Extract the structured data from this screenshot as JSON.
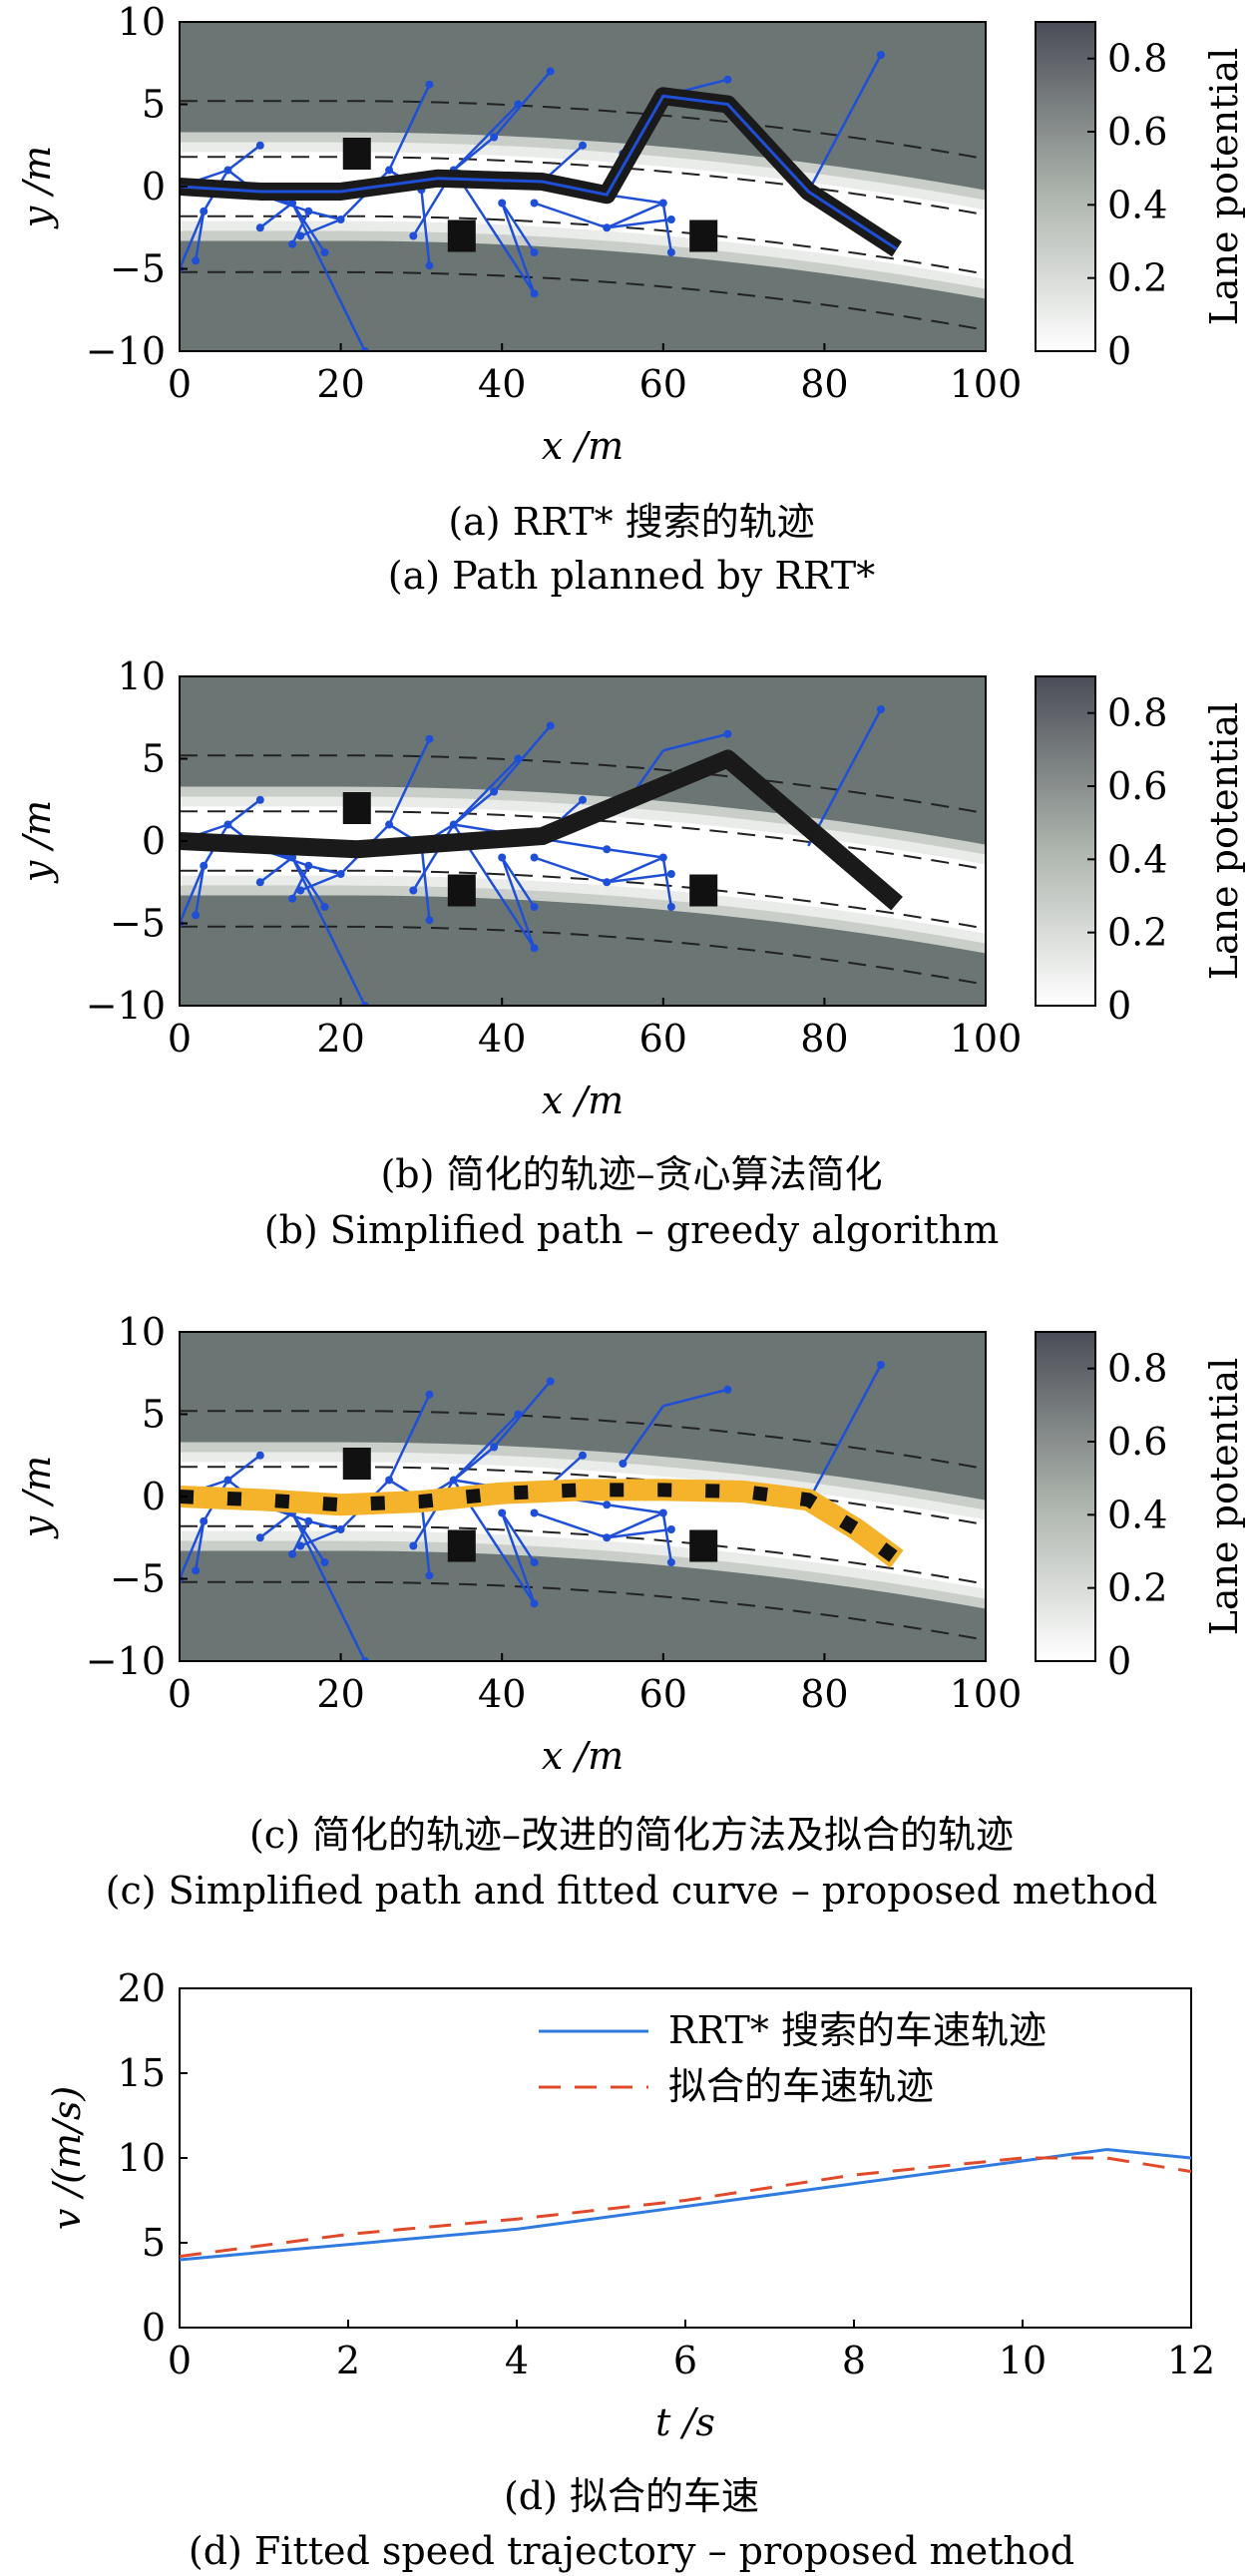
{
  "colors": {
    "road_edge": "#6b7574",
    "lane_center": "#ffffff",
    "tree_edges": "#1f4fd6",
    "rrt_path": "#1a1a1a",
    "fitted_curve": "#f4b32a",
    "speed_rrt": "#2f7be0",
    "speed_fit": "#e04a2a"
  },
  "colorbar": {
    "label": "Lane potential",
    "ticks": [
      "0",
      "0.2",
      "0.4",
      "0.6",
      "0.8"
    ]
  },
  "panel_axis": {
    "xlabel": "x /m",
    "ylabel": "y /m",
    "xticks": [
      "0",
      "20",
      "40",
      "60",
      "80",
      "100"
    ],
    "yticks": [
      "10",
      "5",
      "0",
      "−5",
      "−10"
    ]
  },
  "captions": {
    "a_cn": "(a) RRT* 搜索的轨迹",
    "a_en": "(a) Path planned by RRT*",
    "b_cn": "(b) 简化的轨迹–贪心算法简化",
    "b_en": "(b) Simplified path – greedy algorithm",
    "c_cn": "(c) 简化的轨迹–改进的简化方法及拟合的轨迹",
    "c_en": "(c) Simplified path and fitted curve – proposed method",
    "d_cn": "(d) 拟合的车速",
    "d_en": "(d) Fitted speed trajectory – proposed method"
  },
  "chart_data": [
    {
      "type": "line",
      "panel": "a",
      "xlim": [
        0,
        100
      ],
      "ylim": [
        -10,
        10
      ],
      "obstacles": [
        [
          22,
          2
        ],
        [
          35,
          -3
        ],
        [
          65,
          -3
        ]
      ],
      "series": [
        {
          "name": "",
          "x": [
            0,
            10,
            20,
            32,
            45,
            53,
            60,
            68,
            78,
            89
          ],
          "y": [
            0,
            -0.3,
            -0.3,
            0.5,
            0.3,
            -0.5,
            5.5,
            5,
            -0.3,
            -3.8
          ]
        }
      ]
    },
    {
      "type": "line",
      "panel": "b",
      "xlim": [
        0,
        100
      ],
      "ylim": [
        -10,
        10
      ],
      "obstacles": [
        [
          22,
          2
        ],
        [
          35,
          -3
        ],
        [
          65,
          -3
        ]
      ],
      "series": [
        {
          "name": "",
          "x": [
            0,
            22,
            45,
            68,
            89
          ],
          "y": [
            0,
            -0.5,
            0.3,
            5,
            -3.8
          ]
        }
      ]
    },
    {
      "type": "line",
      "panel": "c",
      "xlim": [
        0,
        100
      ],
      "ylim": [
        -10,
        10
      ],
      "obstacles": [
        [
          22,
          2
        ],
        [
          35,
          -3
        ],
        [
          65,
          -3
        ]
      ],
      "series": [
        {
          "name": "",
          "x": [
            0,
            10,
            20,
            30,
            40,
            50,
            60,
            70,
            78,
            84,
            89
          ],
          "y": [
            0,
            -0.2,
            -0.5,
            -0.3,
            0.2,
            0.4,
            0.4,
            0.3,
            -0.2,
            -2,
            -3.8
          ]
        }
      ]
    },
    {
      "type": "line",
      "panel": "d",
      "xlabel": "t /s",
      "ylabel": "v /(m/s)",
      "xlim": [
        0,
        12
      ],
      "ylim": [
        0,
        20
      ],
      "xticks": [
        "0",
        "2",
        "4",
        "6",
        "8",
        "10",
        "12"
      ],
      "yticks": [
        "20",
        "15",
        "10",
        "5",
        "0"
      ],
      "series": [
        {
          "name": "RRT* 搜索的车速轨迹",
          "x": [
            0,
            4,
            11,
            12
          ],
          "y": [
            4,
            5.8,
            10.5,
            10
          ]
        },
        {
          "name": "拟合的车速轨迹",
          "x": [
            0,
            2,
            4,
            6,
            8,
            10,
            11,
            12
          ],
          "y": [
            4.2,
            5.5,
            6.4,
            7.5,
            9,
            10,
            10,
            9.2
          ]
        }
      ]
    }
  ]
}
